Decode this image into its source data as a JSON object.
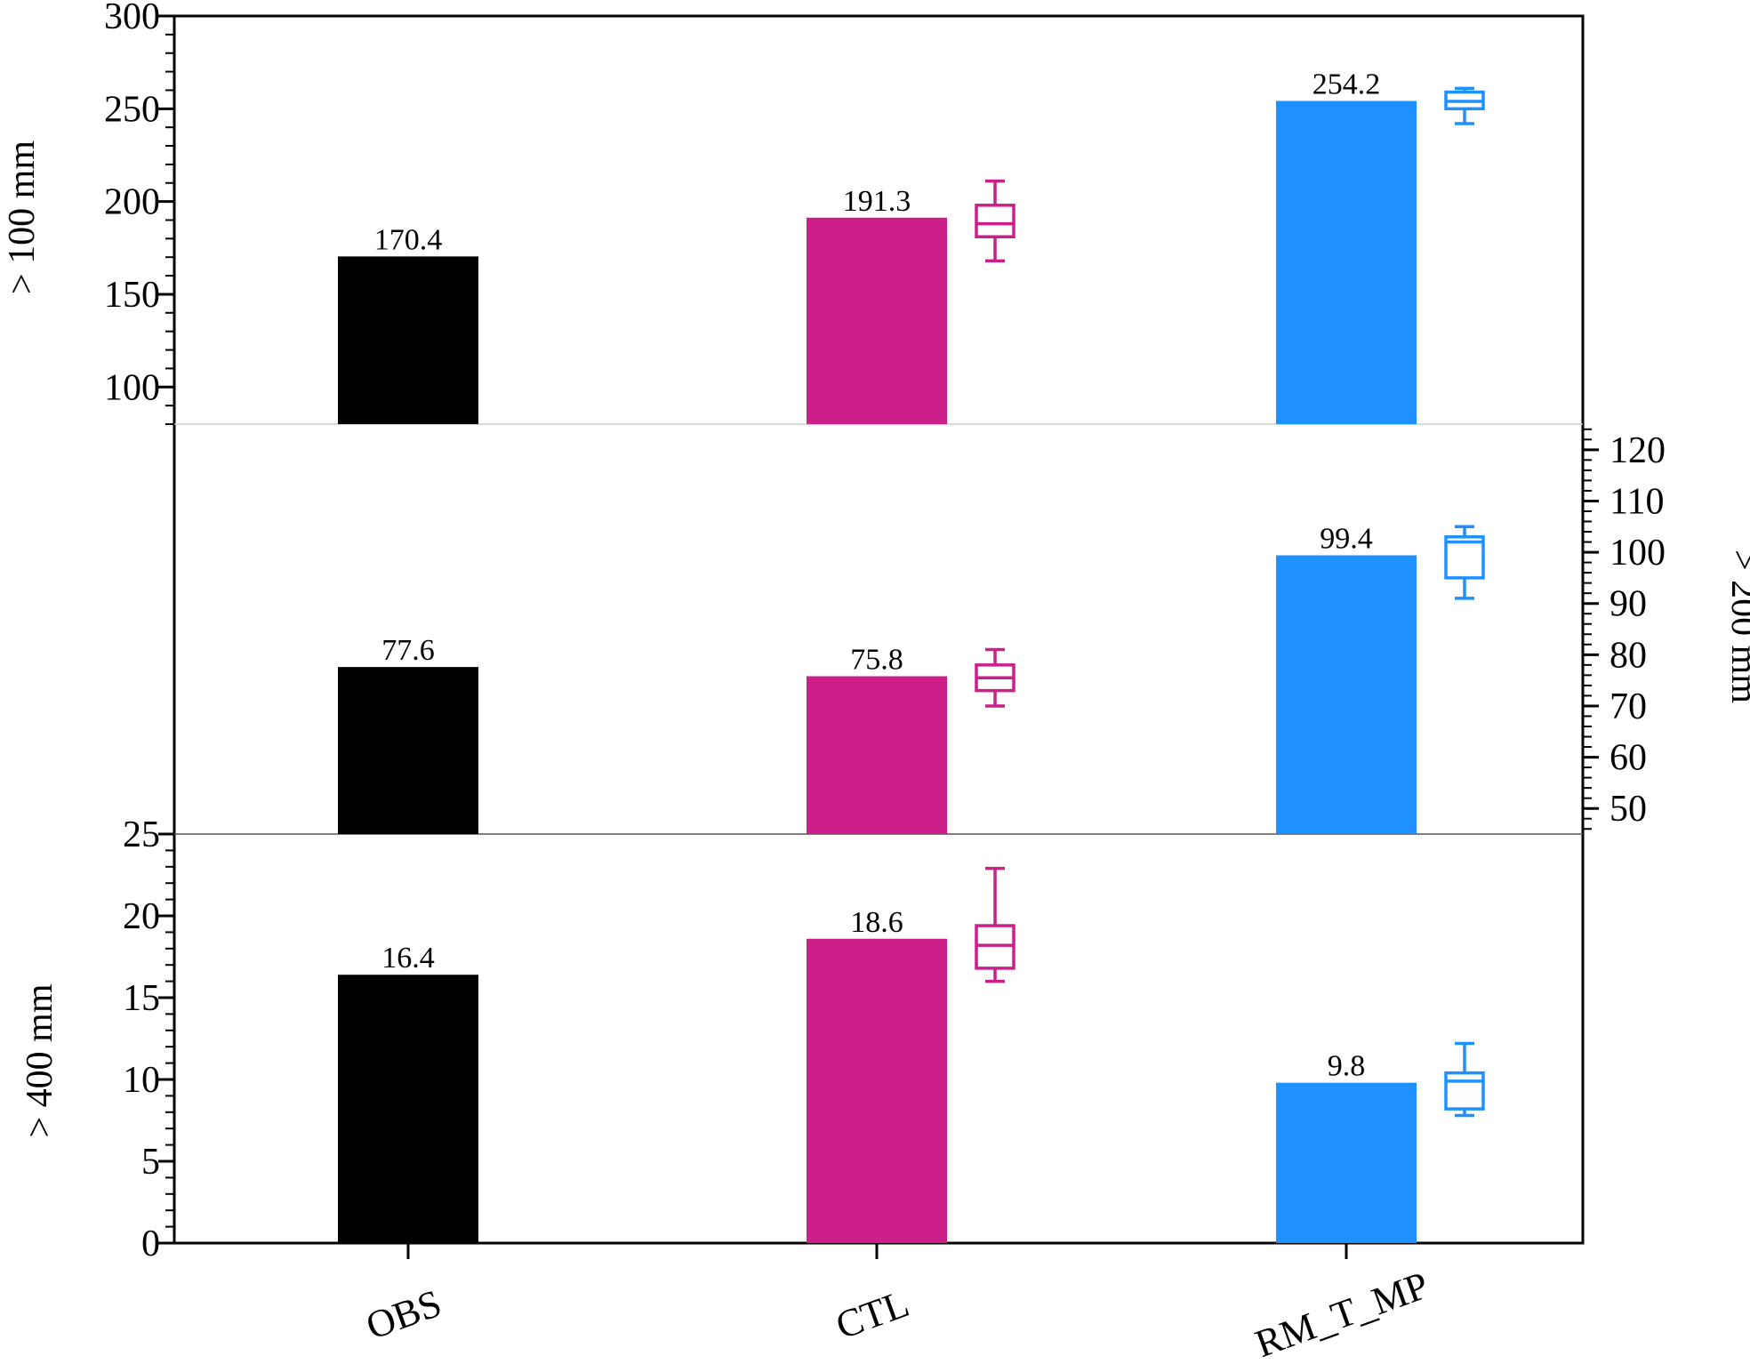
{
  "chart_data": {
    "type": "bar",
    "categories": [
      "OBS",
      "CTL",
      "RM_T_MP"
    ],
    "colors": {
      "OBS": "#000000",
      "CTL": "#cc1f8a",
      "RM_T_MP": "#1e90ff"
    },
    "panels": [
      {
        "id": "top",
        "ylabel": "> 100 mm",
        "axis_side": "left",
        "ylim": [
          80,
          300
        ],
        "yticks": [
          100,
          150,
          200,
          250,
          300
        ],
        "values": [
          170.4,
          191.3,
          254.2
        ],
        "value_labels": [
          "170.4",
          "191.3",
          "254.2"
        ],
        "boxes": [
          null,
          {
            "min": 168,
            "q1": 181,
            "median": 188,
            "q3": 198,
            "max": 211
          },
          {
            "min": 242,
            "q1": 250,
            "median": 254,
            "q3": 259,
            "max": 261
          }
        ]
      },
      {
        "id": "middle",
        "ylabel": "> 200 mm",
        "axis_side": "right",
        "ylim": [
          45,
          125
        ],
        "yticks": [
          50,
          60,
          70,
          80,
          90,
          100,
          110,
          120
        ],
        "values": [
          77.6,
          75.8,
          99.4
        ],
        "value_labels": [
          "77.6",
          "75.8",
          "99.4"
        ],
        "boxes": [
          null,
          {
            "min": 70,
            "q1": 73,
            "median": 75.5,
            "q3": 78,
            "max": 81
          },
          {
            "min": 91,
            "q1": 95,
            "median": 102,
            "q3": 103,
            "max": 105
          }
        ]
      },
      {
        "id": "bottom",
        "ylabel": "> 400 mm",
        "axis_side": "left",
        "ylim": [
          0,
          25
        ],
        "yticks": [
          0,
          5,
          10,
          15,
          20,
          25
        ],
        "values": [
          16.4,
          18.6,
          9.8
        ],
        "value_labels": [
          "16.4",
          "18.6",
          "9.8"
        ],
        "boxes": [
          null,
          {
            "min": 16,
            "q1": 16.8,
            "median": 18.2,
            "q3": 19.4,
            "max": 22.9
          },
          {
            "min": 7.8,
            "q1": 8.2,
            "median": 9.9,
            "q3": 10.4,
            "max": 12.2
          }
        ]
      }
    ]
  }
}
